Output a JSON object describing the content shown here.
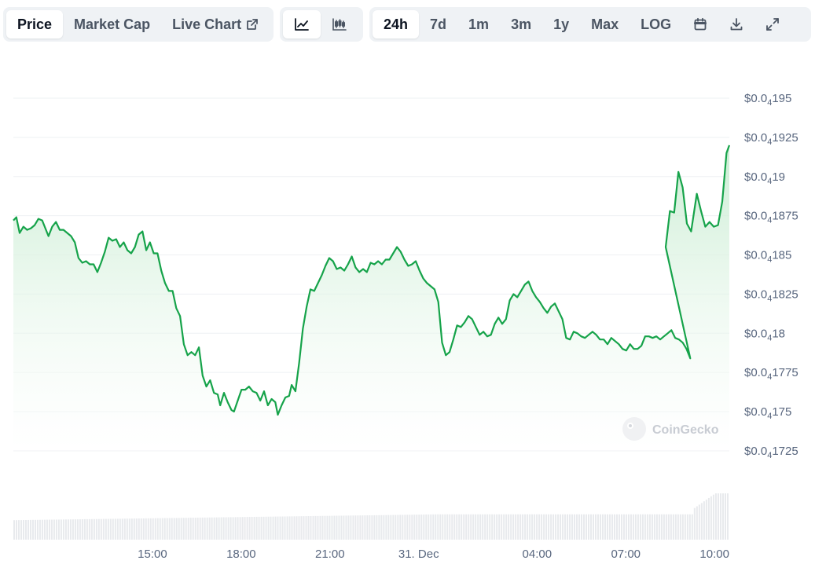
{
  "toolbar": {
    "view_tabs": [
      "Price",
      "Market Cap",
      "Live Chart"
    ],
    "active_view": "Price",
    "chart_type_icons": [
      "line-chart-icon",
      "candlestick-icon"
    ],
    "active_chart_type": "line-chart-icon",
    "ranges": [
      "24h",
      "7d",
      "1m",
      "3m",
      "1y",
      "Max",
      "LOG"
    ],
    "active_range": "24h",
    "tool_icons": [
      "calendar-icon",
      "download-icon",
      "fullscreen-icon"
    ]
  },
  "watermark": "CoinGecko",
  "colors": {
    "line": "#16a34a",
    "fill_top": "#c8ecd1",
    "grid": "#eef0f3",
    "volume": "#e8eaed",
    "tab_bg": "#eff2f5"
  },
  "chart_data": {
    "type": "area",
    "title": "",
    "xlabel": "",
    "ylabel": "",
    "ylim": [
      1.72e-05,
      1.96e-05
    ],
    "y_ticks": [
      {
        "prefix": "$0.0",
        "sub": "4",
        "digits": "1725",
        "value": 1.725e-05
      },
      {
        "prefix": "$0.0",
        "sub": "4",
        "digits": "175",
        "value": 1.75e-05
      },
      {
        "prefix": "$0.0",
        "sub": "4",
        "digits": "1775",
        "value": 1.775e-05
      },
      {
        "prefix": "$0.0",
        "sub": "4",
        "digits": "18",
        "value": 1.8e-05
      },
      {
        "prefix": "$0.0",
        "sub": "4",
        "digits": "1825",
        "value": 1.825e-05
      },
      {
        "prefix": "$0.0",
        "sub": "4",
        "digits": "185",
        "value": 1.85e-05
      },
      {
        "prefix": "$0.0",
        "sub": "4",
        "digits": "1875",
        "value": 1.875e-05
      },
      {
        "prefix": "$0.0",
        "sub": "4",
        "digits": "19",
        "value": 1.9e-05
      },
      {
        "prefix": "$0.0",
        "sub": "4",
        "digits": "1925",
        "value": 1.925e-05
      },
      {
        "prefix": "$0.0",
        "sub": "4",
        "digits": "195",
        "value": 1.95e-05
      }
    ],
    "x_ticks": [
      {
        "label": "15:00",
        "h": 15
      },
      {
        "label": "18:00",
        "h": 18
      },
      {
        "label": "21:00",
        "h": 21
      },
      {
        "label": "31. Dec",
        "h": 24
      },
      {
        "label": "04:00",
        "h": 28
      },
      {
        "label": "07:00",
        "h": 31
      },
      {
        "label": "10:00",
        "h": 34
      }
    ],
    "x_range_hours": [
      10.3,
      34.5
    ],
    "series": [
      {
        "values": [
          [
            10.3,
            18.72
          ],
          [
            10.42,
            18.74
          ],
          [
            10.55,
            18.64
          ],
          [
            10.7,
            18.68
          ],
          [
            10.85,
            18.66
          ],
          [
            11.0,
            18.67
          ],
          [
            11.15,
            18.69
          ],
          [
            11.3,
            18.73
          ],
          [
            11.45,
            18.72
          ],
          [
            11.6,
            18.66
          ],
          [
            11.7,
            18.62
          ],
          [
            11.85,
            18.68
          ],
          [
            12.0,
            18.71
          ],
          [
            12.15,
            18.66
          ],
          [
            12.3,
            18.66
          ],
          [
            12.45,
            18.64
          ],
          [
            12.6,
            18.62
          ],
          [
            12.75,
            18.58
          ],
          [
            12.9,
            18.48
          ],
          [
            13.05,
            18.45
          ],
          [
            13.2,
            18.46
          ],
          [
            13.35,
            18.44
          ],
          [
            13.5,
            18.44
          ],
          [
            13.65,
            18.39
          ],
          [
            13.8,
            18.45
          ],
          [
            13.95,
            18.52
          ],
          [
            14.1,
            18.61
          ],
          [
            14.25,
            18.59
          ],
          [
            14.4,
            18.6
          ],
          [
            14.55,
            18.55
          ],
          [
            14.7,
            18.58
          ],
          [
            14.85,
            18.53
          ],
          [
            15.0,
            18.51
          ],
          [
            15.15,
            18.55
          ],
          [
            15.3,
            18.63
          ],
          [
            15.45,
            18.65
          ],
          [
            15.6,
            18.53
          ],
          [
            15.75,
            18.58
          ],
          [
            15.9,
            18.51
          ],
          [
            16.05,
            18.51
          ],
          [
            16.2,
            18.4
          ],
          [
            16.35,
            18.32
          ],
          [
            16.5,
            18.27
          ],
          [
            16.65,
            18.27
          ],
          [
            16.8,
            18.16
          ],
          [
            16.95,
            18.11
          ],
          [
            17.1,
            17.93
          ],
          [
            17.25,
            17.86
          ],
          [
            17.4,
            17.88
          ],
          [
            17.55,
            17.86
          ],
          [
            17.7,
            17.91
          ],
          [
            17.85,
            17.73
          ],
          [
            18.0,
            17.66
          ],
          [
            18.15,
            17.7
          ],
          [
            18.3,
            17.62
          ],
          [
            18.45,
            17.61
          ],
          [
            18.55,
            17.54
          ],
          [
            18.7,
            17.62
          ],
          [
            18.85,
            17.56
          ],
          [
            19.0,
            17.51
          ],
          [
            19.1,
            17.5
          ],
          [
            19.25,
            17.57
          ],
          [
            19.4,
            17.64
          ],
          [
            19.55,
            17.64
          ],
          [
            19.7,
            17.66
          ],
          [
            19.85,
            17.63
          ],
          [
            20.0,
            17.62
          ],
          [
            20.15,
            17.57
          ],
          [
            20.3,
            17.63
          ],
          [
            20.45,
            17.54
          ],
          [
            20.6,
            17.58
          ],
          [
            20.75,
            17.56
          ],
          [
            20.85,
            17.48
          ],
          [
            21.0,
            17.54
          ],
          [
            21.15,
            17.59
          ],
          [
            21.3,
            17.6
          ],
          [
            21.4,
            17.67
          ],
          [
            21.55,
            17.63
          ],
          [
            21.7,
            17.81
          ],
          [
            21.85,
            18.03
          ],
          [
            22.0,
            18.17
          ],
          [
            22.15,
            18.28
          ],
          [
            22.3,
            18.27
          ],
          [
            22.45,
            18.32
          ],
          [
            22.6,
            18.37
          ],
          [
            22.75,
            18.43
          ],
          [
            22.9,
            18.48
          ],
          [
            23.05,
            18.46
          ],
          [
            23.2,
            18.41
          ],
          [
            23.35,
            18.42
          ],
          [
            23.5,
            18.4
          ],
          [
            23.65,
            18.44
          ],
          [
            23.8,
            18.49
          ],
          [
            23.95,
            18.42
          ],
          [
            24.1,
            18.39
          ],
          [
            24.25,
            18.41
          ],
          [
            24.4,
            18.39
          ],
          [
            24.55,
            18.45
          ],
          [
            24.7,
            18.44
          ],
          [
            24.85,
            18.46
          ],
          [
            25.0,
            18.44
          ],
          [
            25.15,
            18.47
          ],
          [
            25.3,
            18.47
          ],
          [
            25.45,
            18.51
          ],
          [
            25.6,
            18.55
          ],
          [
            25.75,
            18.52
          ],
          [
            25.9,
            18.47
          ],
          [
            26.05,
            18.43
          ],
          [
            26.2,
            18.44
          ],
          [
            26.35,
            18.46
          ],
          [
            26.5,
            18.4
          ],
          [
            26.65,
            18.35
          ],
          [
            26.8,
            18.32
          ],
          [
            26.95,
            18.3
          ],
          [
            27.1,
            18.28
          ],
          [
            27.25,
            18.2
          ],
          [
            27.4,
            17.94
          ],
          [
            27.55,
            17.86
          ],
          [
            27.7,
            17.88
          ],
          [
            27.85,
            17.96
          ],
          [
            28.0,
            18.05
          ],
          [
            28.15,
            18.04
          ],
          [
            28.3,
            18.07
          ],
          [
            28.45,
            18.11
          ],
          [
            28.6,
            18.09
          ],
          [
            28.75,
            18.04
          ],
          [
            28.9,
            17.99
          ],
          [
            29.05,
            18.01
          ],
          [
            29.2,
            17.98
          ],
          [
            29.35,
            17.99
          ],
          [
            29.5,
            18.06
          ],
          [
            29.65,
            18.1
          ],
          [
            29.8,
            18.06
          ],
          [
            29.95,
            18.09
          ],
          [
            30.1,
            18.21
          ],
          [
            30.25,
            18.25
          ],
          [
            30.4,
            18.23
          ],
          [
            30.55,
            18.27
          ],
          [
            30.7,
            18.31
          ],
          [
            30.85,
            18.33
          ],
          [
            31.0,
            18.27
          ],
          [
            31.15,
            18.23
          ],
          [
            31.3,
            18.2
          ],
          [
            31.45,
            18.16
          ],
          [
            31.6,
            18.13
          ],
          [
            31.75,
            18.17
          ],
          [
            31.9,
            18.19
          ],
          [
            32.05,
            18.14
          ],
          [
            32.2,
            18.09
          ],
          [
            32.35,
            17.97
          ],
          [
            32.5,
            17.96
          ],
          [
            32.65,
            18.01
          ],
          [
            32.8,
            18.0
          ],
          [
            32.95,
            17.98
          ],
          [
            33.1,
            17.97
          ],
          [
            33.25,
            17.99
          ],
          [
            33.4,
            18.01
          ],
          [
            33.55,
            17.99
          ],
          [
            33.7,
            17.96
          ],
          [
            33.85,
            17.96
          ],
          [
            34.0,
            17.93
          ],
          [
            34.15,
            17.97
          ],
          [
            34.3,
            17.95
          ],
          [
            34.45,
            17.93
          ],
          [
            34.6,
            17.9
          ],
          [
            34.75,
            17.89
          ],
          [
            34.9,
            17.93
          ],
          [
            35.05,
            17.9
          ],
          [
            35.2,
            17.9
          ],
          [
            35.35,
            17.92
          ],
          [
            35.5,
            17.98
          ],
          [
            35.65,
            17.98
          ],
          [
            35.8,
            17.97
          ],
          [
            35.95,
            17.98
          ],
          [
            36.1,
            17.96
          ],
          [
            36.25,
            17.98
          ],
          [
            36.4,
            18.0
          ],
          [
            36.55,
            18.02
          ],
          [
            36.7,
            17.97
          ],
          [
            36.85,
            17.96
          ],
          [
            37.0,
            17.94
          ],
          [
            37.15,
            17.9
          ],
          [
            37.3,
            17.84
          ],
          [
            37.45,
            17.83
          ],
          [
            37.6,
            17.86
          ],
          [
            37.75,
            17.86
          ],
          [
            37.9,
            17.8
          ],
          [
            38.05,
            17.81
          ],
          [
            38.2,
            17.84
          ],
          [
            38.35,
            17.89
          ],
          [
            38.5,
            17.89
          ],
          [
            38.65,
            17.86
          ],
          [
            38.8,
            17.82
          ]
        ]
      }
    ],
    "volume_series": [
      {
        "h_from": 10.3,
        "h_to": 33.3,
        "level_from": 0.4,
        "level_to": 0.52
      },
      {
        "h_from": 33.3,
        "h_to": 34.5,
        "level_from": 0.65,
        "level_to": 0.95
      }
    ]
  }
}
